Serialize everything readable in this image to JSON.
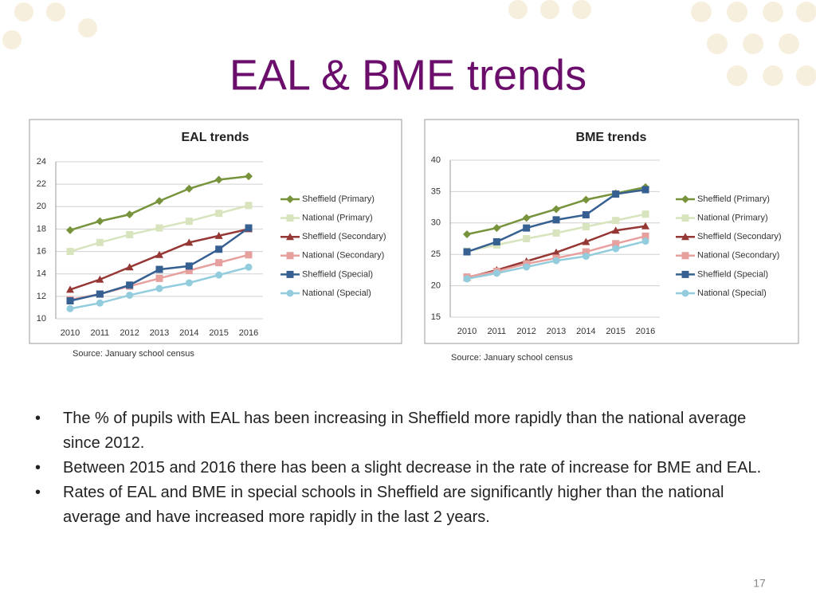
{
  "title": "EAL & BME trends",
  "chart_data": [
    {
      "type": "line",
      "title": "EAL trends",
      "categories": [
        "2010",
        "2011",
        "2012",
        "2013",
        "2014",
        "2015",
        "2016"
      ],
      "ylim": [
        10,
        24
      ],
      "yticks": [
        10,
        12,
        14,
        16,
        18,
        20,
        22,
        24
      ],
      "series": [
        {
          "name": "Sheffield (Primary)",
          "color": "#77933c",
          "marker": "diamond",
          "values": [
            17.9,
            18.7,
            19.3,
            20.5,
            21.6,
            22.4,
            22.7
          ]
        },
        {
          "name": "National (Primary)",
          "color": "#d7e4bd",
          "marker": "square",
          "values": [
            16.0,
            16.8,
            17.5,
            18.1,
            18.7,
            19.4,
            20.1
          ]
        },
        {
          "name": "Sheffield (Secondary)",
          "color": "#953735",
          "marker": "triangle",
          "values": [
            12.6,
            13.5,
            14.6,
            15.7,
            16.8,
            17.4,
            18.0
          ]
        },
        {
          "name": "National (Secondary)",
          "color": "#e6a09e",
          "marker": "square",
          "values": [
            11.7,
            12.2,
            12.9,
            13.6,
            14.3,
            15.0,
            15.7
          ]
        },
        {
          "name": "Sheffield (Special)",
          "color": "#376092",
          "marker": "square",
          "values": [
            11.6,
            12.2,
            13.0,
            14.4,
            14.7,
            16.2,
            18.1
          ]
        },
        {
          "name": "National (Special)",
          "color": "#93cddd",
          "marker": "circle",
          "values": [
            10.9,
            11.4,
            12.1,
            12.7,
            13.2,
            13.9,
            14.6
          ]
        }
      ]
    },
    {
      "type": "line",
      "title": "BME trends",
      "categories": [
        "2010",
        "2011",
        "2012",
        "2013",
        "2014",
        "2015",
        "2016"
      ],
      "ylim": [
        15,
        40
      ],
      "yticks": [
        15,
        20,
        25,
        30,
        35,
        40
      ],
      "series": [
        {
          "name": "Sheffield (Primary)",
          "color": "#77933c",
          "marker": "diamond",
          "values": [
            28.2,
            29.2,
            30.8,
            32.2,
            33.7,
            34.7,
            35.7
          ]
        },
        {
          "name": "National (Primary)",
          "color": "#d7e4bd",
          "marker": "square",
          "values": [
            25.5,
            26.5,
            27.5,
            28.4,
            29.4,
            30.4,
            31.4
          ]
        },
        {
          "name": "Sheffield (Secondary)",
          "color": "#953735",
          "marker": "triangle",
          "values": [
            21.3,
            22.5,
            23.9,
            25.3,
            27.0,
            28.8,
            29.5
          ]
        },
        {
          "name": "National (Secondary)",
          "color": "#e6a09e",
          "marker": "square",
          "values": [
            21.4,
            22.3,
            23.5,
            24.4,
            25.4,
            26.7,
            27.9
          ]
        },
        {
          "name": "Sheffield (Special)",
          "color": "#376092",
          "marker": "square",
          "values": [
            25.4,
            27.0,
            29.2,
            30.5,
            31.3,
            34.6,
            35.3
          ]
        },
        {
          "name": "National (Special)",
          "color": "#93cddd",
          "marker": "circle",
          "values": [
            21.1,
            22.0,
            23.0,
            24.0,
            24.7,
            25.9,
            27.1
          ]
        }
      ]
    }
  ],
  "sources": [
    "Source: January school census",
    "Source: January school census"
  ],
  "bullets": [
    "The % of pupils with EAL has been increasing in Sheffield more rapidly than the national average since 2012.",
    "Between 2015 and 2016 there has been a slight decrease in the rate of increase for BME and EAL.",
    "Rates of EAL and BME in special schools in Sheffield are significantly higher than the national average and have increased more rapidly in the last 2 years."
  ],
  "page_number": "17"
}
